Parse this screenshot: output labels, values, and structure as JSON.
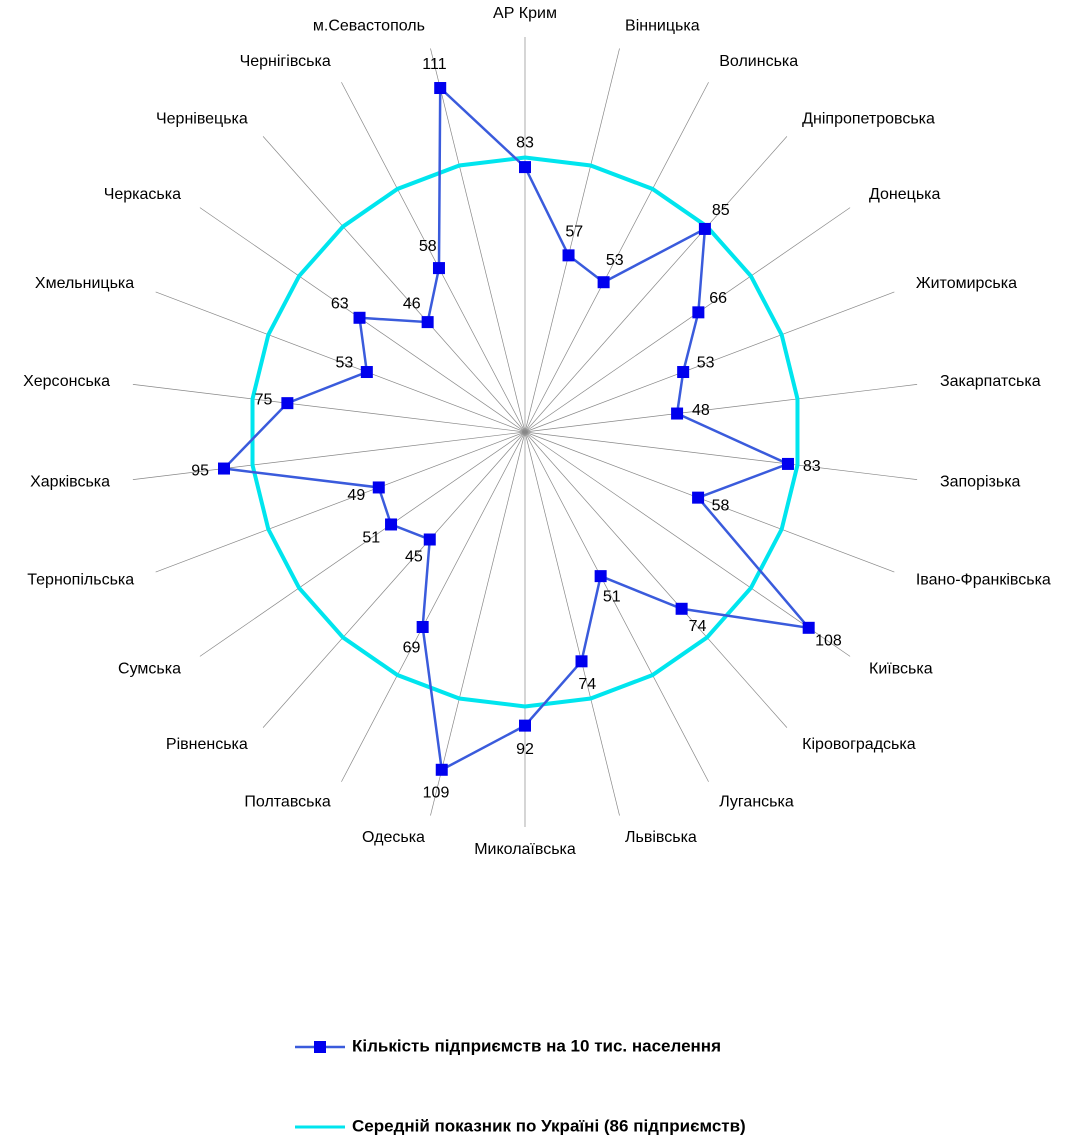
{
  "chart_data": {
    "type": "radar",
    "categories": [
      "АР Крим",
      "Вінницька",
      "Волинська",
      "Дніпропетровська",
      "Донецька",
      "Житомирська",
      "Закарпатська",
      "Запорізька",
      "Івано-Франківська",
      "Київська",
      "Кіровоградська",
      "Луганська",
      "Львівська",
      "Миколаївська",
      "Одеська",
      "Полтавська",
      "Рівненська",
      "Сумська",
      "Тернопільська",
      "Харківська",
      "Херсонська",
      "Хмельницька",
      "Черкаська",
      "Чернівецька",
      "Чернігівська",
      "м.Севастополь"
    ],
    "rlim": [
      0,
      120
    ],
    "series": [
      {
        "name": "Кількість підприємств на 10 тис. населення",
        "color": "#0000ee",
        "line_color": "#3a5bdc",
        "values": [
          83,
          57,
          53,
          85,
          66,
          53,
          48,
          83,
          58,
          108,
          74,
          51,
          74,
          92,
          109,
          69,
          45,
          51,
          49,
          95,
          75,
          53,
          63,
          46,
          58,
          111
        ],
        "labels": true
      },
      {
        "name": "Середній показник по Україні (86 підприємств)",
        "color": "#00e5ee",
        "values": [
          86,
          86,
          86,
          86,
          86,
          86,
          86,
          86,
          86,
          86,
          86,
          86,
          86,
          86,
          86,
          86,
          86,
          86,
          86,
          86,
          86,
          86,
          86,
          86,
          86,
          86
        ],
        "labels": false
      }
    ]
  }
}
